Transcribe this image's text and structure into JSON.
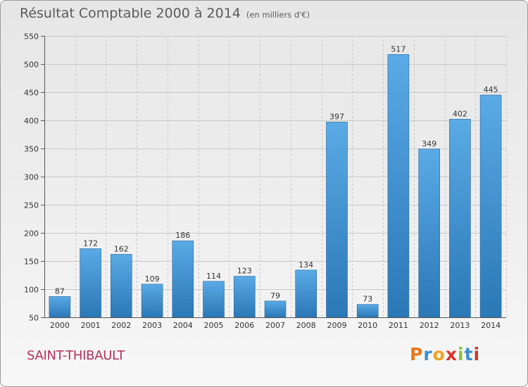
{
  "title": "Résultat Comptable 2000 à 2014",
  "unit": "(en milliers d'€)",
  "commune": "SAINT-THIBAULT",
  "logo": {
    "letters": [
      "P",
      "r",
      "o",
      "x",
      "i",
      "t",
      "i"
    ],
    "colors": [
      "#e8781c",
      "#3a8ed0",
      "#f0a020",
      "#d8322c",
      "#8cc03c",
      "#3a8ed0",
      "#d8322c"
    ]
  },
  "colors": {
    "bar_top": "#5aaae6",
    "bar_bottom": "#2a78b6",
    "bar_edge": "#2868a0",
    "grid": "#c8c8c8"
  },
  "chart_data": {
    "type": "bar",
    "title": "Résultat Comptable 2000 à 2014",
    "xlabel": "",
    "ylabel": "(en milliers d'€)",
    "categories": [
      "2000",
      "2001",
      "2002",
      "2003",
      "2004",
      "2005",
      "2006",
      "2007",
      "2008",
      "2009",
      "2010",
      "2011",
      "2012",
      "2013",
      "2014"
    ],
    "values": [
      87,
      172,
      162,
      109,
      186,
      114,
      123,
      79,
      134,
      397,
      73,
      517,
      349,
      402,
      445
    ],
    "ylim": [
      50,
      550
    ],
    "yticks": [
      50,
      100,
      150,
      200,
      250,
      300,
      350,
      400,
      450,
      500,
      550
    ],
    "grid": true
  }
}
